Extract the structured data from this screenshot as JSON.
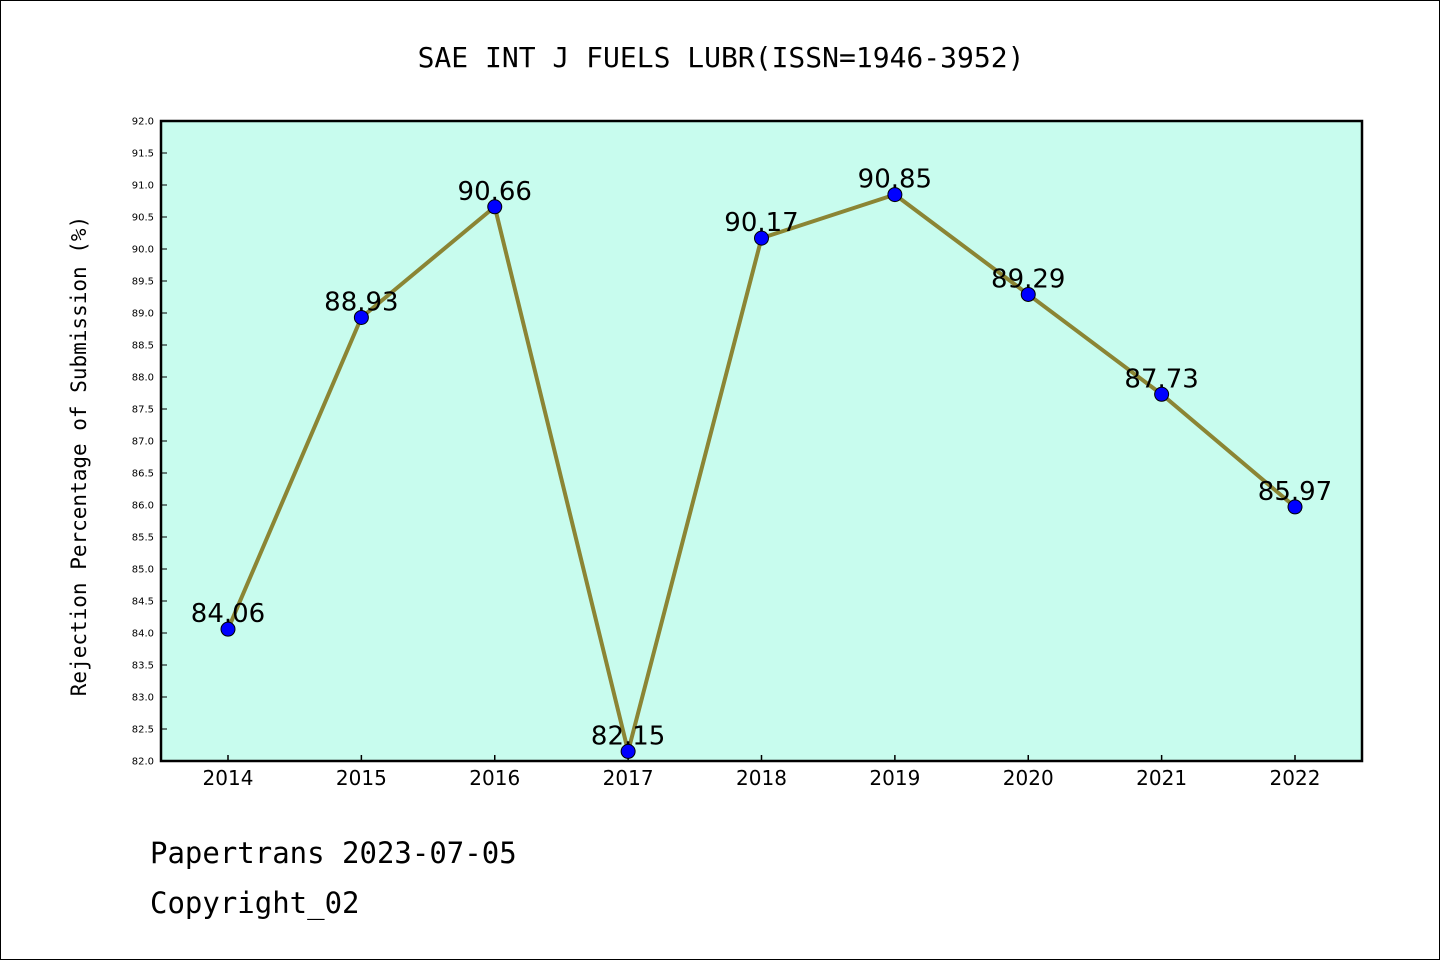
{
  "chart_data": {
    "type": "line",
    "title": "SAE INT J FUELS LUBR(ISSN=1946-3952)",
    "xlabel": "",
    "ylabel": "Rejection Percentage of Submission (%)",
    "categories": [
      "2014",
      "2015",
      "2016",
      "2017",
      "2018",
      "2019",
      "2020",
      "2021",
      "2022"
    ],
    "series": [
      {
        "values": [
          84.06,
          88.93,
          90.66,
          82.15,
          90.17,
          90.85,
          89.29,
          87.73,
          85.97
        ],
        "labels": [
          "84.06",
          "88.93",
          "90.66",
          "82.15",
          "90.17",
          "90.85",
          "89.29",
          "87.73",
          "85.97"
        ]
      }
    ],
    "ylim": [
      82.0,
      92.0
    ],
    "yticks": [
      "82.0",
      "82.5",
      "83.0",
      "83.5",
      "84.0",
      "84.5",
      "85.0",
      "85.5",
      "86.0",
      "86.5",
      "87.0",
      "87.5",
      "88.0",
      "88.5",
      "89.0",
      "89.5",
      "90.0",
      "90.5",
      "91.0",
      "91.5",
      "92.0"
    ],
    "grid": false,
    "legend": "none",
    "colors": {
      "plot_background": "#c8fcee",
      "line": "#8b8534",
      "marker": "#0000ff",
      "axes": "#000000"
    }
  },
  "footer": {
    "line1": "Papertrans 2023-07-05",
    "line2": "Copyright_02"
  }
}
